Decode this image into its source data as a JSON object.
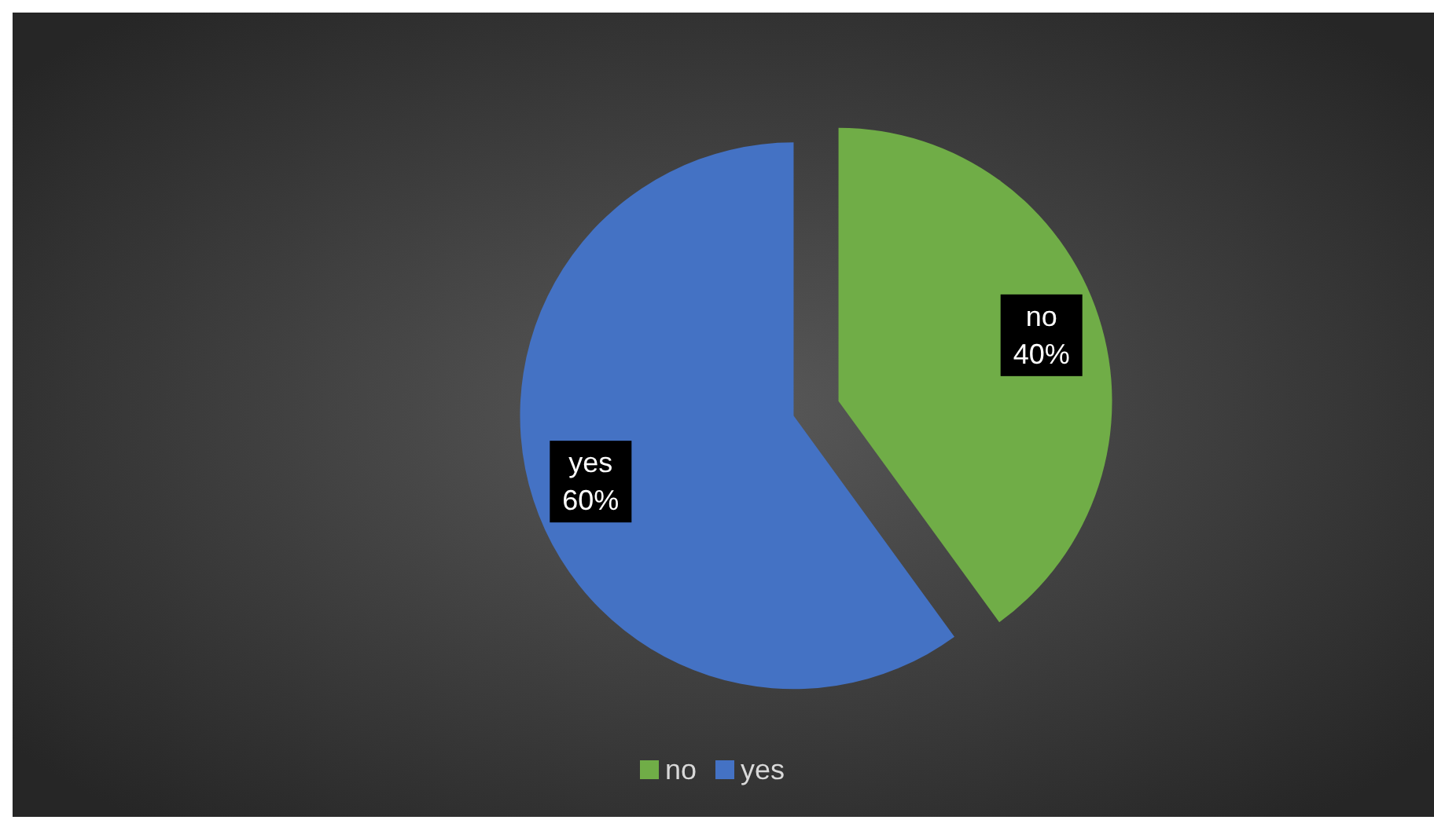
{
  "chart_data": {
    "type": "pie",
    "categories": [
      "no",
      "yes"
    ],
    "values": [
      40,
      60
    ],
    "colors": [
      "#70ad47",
      "#4472c4"
    ],
    "value_labels": [
      "40%",
      "60%"
    ],
    "legend": "bottom"
  }
}
